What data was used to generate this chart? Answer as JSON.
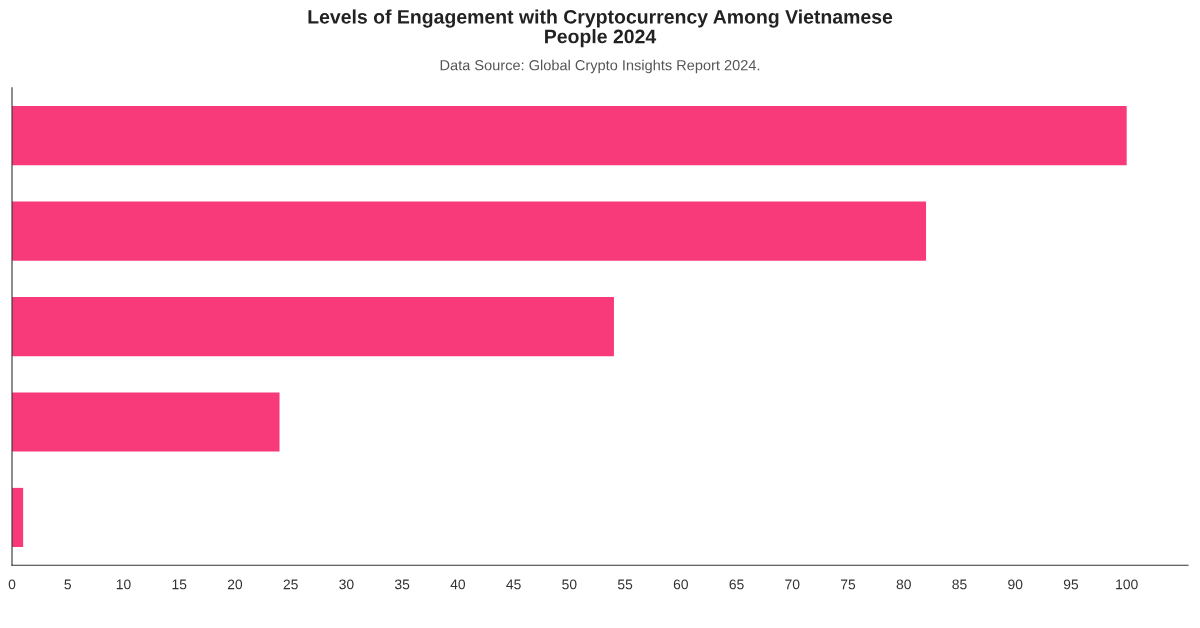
{
  "chart_data": {
    "type": "bar",
    "orientation": "horizontal",
    "title": "Levels of Engagement with Cryptocurrency Among Vietnamese\nPeople 2024",
    "subtitle": "Data Source: Global Crypto Insights Report 2024.",
    "categories": [
      null,
      null,
      null,
      null,
      null
    ],
    "values": [
      100,
      82,
      54,
      24,
      1
    ],
    "color": "#f8397a",
    "xlim": [
      0,
      105.5
    ],
    "xticks": [
      0,
      5,
      10,
      15,
      20,
      25,
      30,
      35,
      40,
      45,
      50,
      55,
      60,
      65,
      70,
      75,
      80,
      85,
      90,
      95,
      100
    ],
    "grid": false
  }
}
